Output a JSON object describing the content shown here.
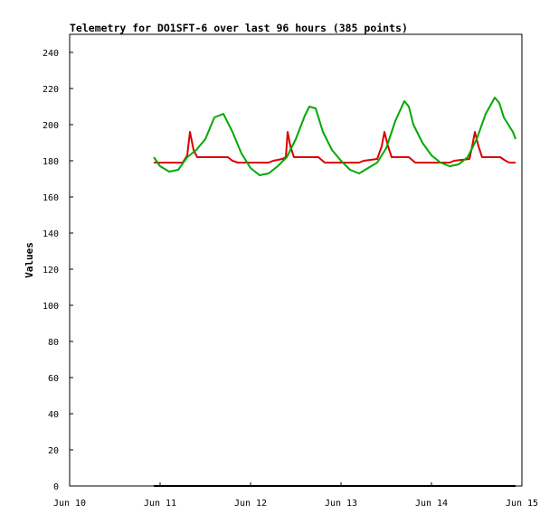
{
  "chart_data": {
    "type": "line",
    "title": "Telemetry for DO1SFT-6 over last 96 hours (385 points)",
    "xlabel": "",
    "ylabel": "Values",
    "ylim": [
      0,
      250
    ],
    "yticks": [
      0,
      20,
      40,
      60,
      80,
      100,
      120,
      140,
      160,
      180,
      200,
      220,
      240
    ],
    "xlim": [
      0,
      5
    ],
    "x_unit": "days from Jun 10",
    "xticks": [
      {
        "value": 0,
        "label": "Jun 10"
      },
      {
        "value": 1,
        "label": "Jun 11"
      },
      {
        "value": 2,
        "label": "Jun 12"
      },
      {
        "value": 3,
        "label": "Jun 13"
      },
      {
        "value": 4,
        "label": "Jun 14"
      },
      {
        "value": 5,
        "label": "Jun 15"
      }
    ],
    "grid": false,
    "legend": "none",
    "series": [
      {
        "color": "#dd0000",
        "points": [
          [
            0.93,
            179
          ],
          [
            1.25,
            179
          ],
          [
            1.3,
            183
          ],
          [
            1.33,
            196
          ],
          [
            1.37,
            186
          ],
          [
            1.41,
            182
          ],
          [
            1.75,
            182
          ],
          [
            1.8,
            180
          ],
          [
            1.86,
            179
          ],
          [
            2.2,
            179
          ],
          [
            2.25,
            180
          ],
          [
            2.35,
            181
          ],
          [
            2.39,
            182
          ],
          [
            2.41,
            196
          ],
          [
            2.44,
            188
          ],
          [
            2.48,
            182
          ],
          [
            2.75,
            182
          ],
          [
            2.82,
            179
          ],
          [
            3.2,
            179
          ],
          [
            3.25,
            180
          ],
          [
            3.4,
            181
          ],
          [
            3.45,
            188
          ],
          [
            3.48,
            196
          ],
          [
            3.52,
            188
          ],
          [
            3.56,
            182
          ],
          [
            3.75,
            182
          ],
          [
            3.82,
            179
          ],
          [
            4.2,
            179
          ],
          [
            4.25,
            180
          ],
          [
            4.42,
            181
          ],
          [
            4.45,
            188
          ],
          [
            4.48,
            196
          ],
          [
            4.52,
            188
          ],
          [
            4.56,
            182
          ],
          [
            4.76,
            182
          ],
          [
            4.82,
            180
          ],
          [
            4.86,
            179
          ],
          [
            4.93,
            179
          ]
        ]
      },
      {
        "color": "#00aa00",
        "points": [
          [
            0.93,
            182
          ],
          [
            1.0,
            177
          ],
          [
            1.1,
            174
          ],
          [
            1.2,
            175
          ],
          [
            1.3,
            182
          ],
          [
            1.4,
            186
          ],
          [
            1.5,
            192
          ],
          [
            1.6,
            204
          ],
          [
            1.7,
            206
          ],
          [
            1.8,
            196
          ],
          [
            1.9,
            184
          ],
          [
            2.0,
            176
          ],
          [
            2.1,
            172
          ],
          [
            2.2,
            173
          ],
          [
            2.3,
            177
          ],
          [
            2.4,
            182
          ],
          [
            2.5,
            192
          ],
          [
            2.6,
            205
          ],
          [
            2.65,
            210
          ],
          [
            2.72,
            209
          ],
          [
            2.8,
            196
          ],
          [
            2.9,
            186
          ],
          [
            3.0,
            180
          ],
          [
            3.1,
            175
          ],
          [
            3.2,
            173
          ],
          [
            3.3,
            176
          ],
          [
            3.4,
            179
          ],
          [
            3.5,
            187
          ],
          [
            3.6,
            202
          ],
          [
            3.7,
            213
          ],
          [
            3.75,
            210
          ],
          [
            3.8,
            200
          ],
          [
            3.9,
            190
          ],
          [
            4.0,
            183
          ],
          [
            4.1,
            179
          ],
          [
            4.2,
            177
          ],
          [
            4.3,
            178
          ],
          [
            4.4,
            182
          ],
          [
            4.5,
            192
          ],
          [
            4.6,
            206
          ],
          [
            4.7,
            215
          ],
          [
            4.75,
            212
          ],
          [
            4.8,
            204
          ],
          [
            4.9,
            196
          ],
          [
            4.93,
            192
          ]
        ]
      },
      {
        "color": "#000000",
        "points": [
          [
            0.93,
            0
          ],
          [
            4.93,
            0
          ]
        ]
      }
    ]
  }
}
